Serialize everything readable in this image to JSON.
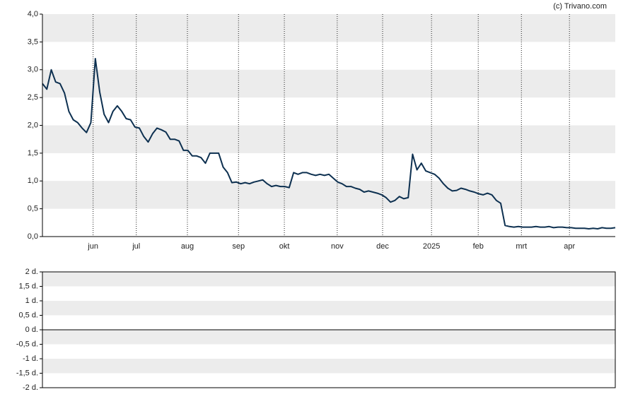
{
  "chart_data": [
    {
      "type": "line",
      "watermark": "(c) Trivano.com",
      "series": [
        {
          "color": "#0d3050",
          "values": [
            2.75,
            2.65,
            3.0,
            2.78,
            2.75,
            2.58,
            2.25,
            2.1,
            2.05,
            1.95,
            1.87,
            2.05,
            3.2,
            2.6,
            2.2,
            2.05,
            2.25,
            2.35,
            2.25,
            2.12,
            2.1,
            1.97,
            1.95,
            1.8,
            1.7,
            1.85,
            1.95,
            1.92,
            1.88,
            1.75,
            1.75,
            1.72,
            1.55,
            1.55,
            1.45,
            1.45,
            1.42,
            1.32,
            1.5,
            1.5,
            1.5,
            1.25,
            1.15,
            0.97,
            0.98,
            0.95,
            0.97,
            0.95,
            0.98,
            1.0,
            1.02,
            0.95,
            0.9,
            0.92,
            0.9,
            0.9,
            0.88,
            1.15,
            1.12,
            1.15,
            1.15,
            1.12,
            1.1,
            1.12,
            1.1,
            1.12,
            1.05,
            0.98,
            0.95,
            0.9,
            0.9,
            0.87,
            0.85,
            0.8,
            0.82,
            0.8,
            0.78,
            0.75,
            0.7,
            0.62,
            0.65,
            0.72,
            0.68,
            0.7,
            1.48,
            1.2,
            1.32,
            1.18,
            1.15,
            1.12,
            1.05,
            0.95,
            0.87,
            0.82,
            0.83,
            0.87,
            0.85,
            0.82,
            0.8,
            0.77,
            0.75,
            0.78,
            0.75,
            0.65,
            0.6,
            0.2,
            0.18,
            0.17,
            0.18,
            0.17,
            0.17,
            0.17,
            0.18,
            0.17,
            0.17,
            0.18,
            0.16,
            0.17,
            0.17,
            0.16,
            0.16,
            0.15,
            0.15,
            0.15,
            0.14,
            0.15,
            0.14,
            0.16,
            0.15,
            0.15,
            0.16
          ]
        }
      ],
      "xlim": [
        0,
        130
      ],
      "xticks": [
        {
          "value": 11.5,
          "label": "jun"
        },
        {
          "value": 21.3,
          "label": "jul"
        },
        {
          "value": 32.9,
          "label": "aug"
        },
        {
          "value": 44.5,
          "label": "sep"
        },
        {
          "value": 54.9,
          "label": "okt"
        },
        {
          "value": 66.9,
          "label": "nov"
        },
        {
          "value": 77.2,
          "label": "dec"
        },
        {
          "value": 88.3,
          "label": "2025"
        },
        {
          "value": 98.9,
          "label": "feb"
        },
        {
          "value": 108.7,
          "label": "mrt"
        },
        {
          "value": 119.6,
          "label": "apr"
        }
      ],
      "ylim": [
        0,
        4
      ],
      "yticks": [
        {
          "value": 0,
          "label": "0,0"
        },
        {
          "value": 0.5,
          "label": "0,5"
        },
        {
          "value": 1,
          "label": "1,0"
        },
        {
          "value": 1.5,
          "label": "1,5"
        },
        {
          "value": 2,
          "label": "2,0"
        },
        {
          "value": 2.5,
          "label": "2,5"
        },
        {
          "value": 3,
          "label": "3,0"
        },
        {
          "value": 3.5,
          "label": "3,5"
        },
        {
          "value": 4,
          "label": "4,0"
        }
      ]
    },
    {
      "type": "bar",
      "ylim": [
        -2,
        2
      ],
      "yticks": [
        {
          "value": -2,
          "label": "-2 d."
        },
        {
          "value": -1.5,
          "label": "-1,5 d."
        },
        {
          "value": -1,
          "label": "-1 d."
        },
        {
          "value": -0.5,
          "label": "-0,5 d."
        },
        {
          "value": 0,
          "label": "0 d."
        },
        {
          "value": 0.5,
          "label": "0,5 d."
        },
        {
          "value": 1,
          "label": "1 d."
        },
        {
          "value": 1.5,
          "label": "1,5 d."
        },
        {
          "value": 2,
          "label": "2 d."
        }
      ]
    }
  ]
}
